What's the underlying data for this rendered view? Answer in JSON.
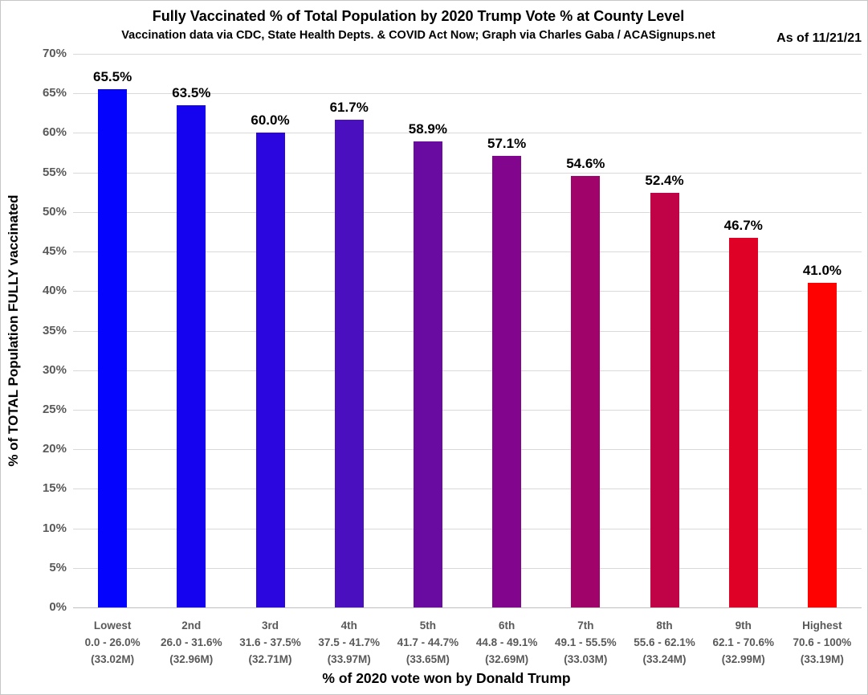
{
  "header": {
    "as_of": "As of 11/21/21"
  },
  "chart_data": {
    "type": "bar",
    "title": "Fully Vaccinated % of Total Population by 2020 Trump Vote % at County Level",
    "subtitle": "Vaccination data via CDC, State Health Depts. & COVID Act Now; Graph via Charles Gaba / ACASignups.net",
    "as_of": "As of 11/21/21",
    "xlabel": "% of 2020 vote won by Donald Trump",
    "ylabel": "% of TOTAL Population FULLY vaccinated",
    "ylim": [
      0,
      70
    ],
    "ytick_step": 5,
    "ytick_labels": [
      "0%",
      "5%",
      "10%",
      "15%",
      "20%",
      "25%",
      "30%",
      "35%",
      "40%",
      "45%",
      "50%",
      "55%",
      "60%",
      "65%",
      "70%"
    ],
    "grid": true,
    "legend_position": "none",
    "categories": [
      {
        "rank": "Lowest",
        "range": "0.0 - 26.0%",
        "population": "(33.02M)"
      },
      {
        "rank": "2nd",
        "range": "26.0 - 31.6%",
        "population": "(32.96M)"
      },
      {
        "rank": "3rd",
        "range": "31.6 - 37.5%",
        "population": "(32.71M)"
      },
      {
        "rank": "4th",
        "range": "37.5 - 41.7%",
        "population": "(33.97M)"
      },
      {
        "rank": "5th",
        "range": "41.7 - 44.7%",
        "population": "(33.65M)"
      },
      {
        "rank": "6th",
        "range": "44.8 - 49.1%",
        "population": "(32.69M)"
      },
      {
        "rank": "7th",
        "range": "49.1 - 55.5%",
        "population": "(33.03M)"
      },
      {
        "rank": "8th",
        "range": "55.6 - 62.1%",
        "population": "(33.24M)"
      },
      {
        "rank": "9th",
        "range": "62.1 - 70.6%",
        "population": "(32.99M)"
      },
      {
        "rank": "Highest",
        "range": "70.6 - 100%",
        "population": "(33.19M)"
      }
    ],
    "values": [
      65.5,
      63.5,
      60.0,
      61.7,
      58.9,
      57.1,
      54.6,
      52.4,
      46.7,
      41.0
    ],
    "value_labels": [
      "65.5%",
      "63.5%",
      "60.0%",
      "61.7%",
      "58.9%",
      "57.1%",
      "54.6%",
      "52.4%",
      "46.7%",
      "41.0%"
    ],
    "bar_colors": [
      "#0303fe",
      "#1502ee",
      "#2b06de",
      "#4a0fbf",
      "#690aa0",
      "#81058d",
      "#a0036a",
      "#c00247",
      "#e00126",
      "#fe0201"
    ],
    "colors": {
      "gridline": "#d9d9d9",
      "axis_line": "#bfbfbf",
      "tick_text": "#595959",
      "label_text": "#000000"
    }
  }
}
